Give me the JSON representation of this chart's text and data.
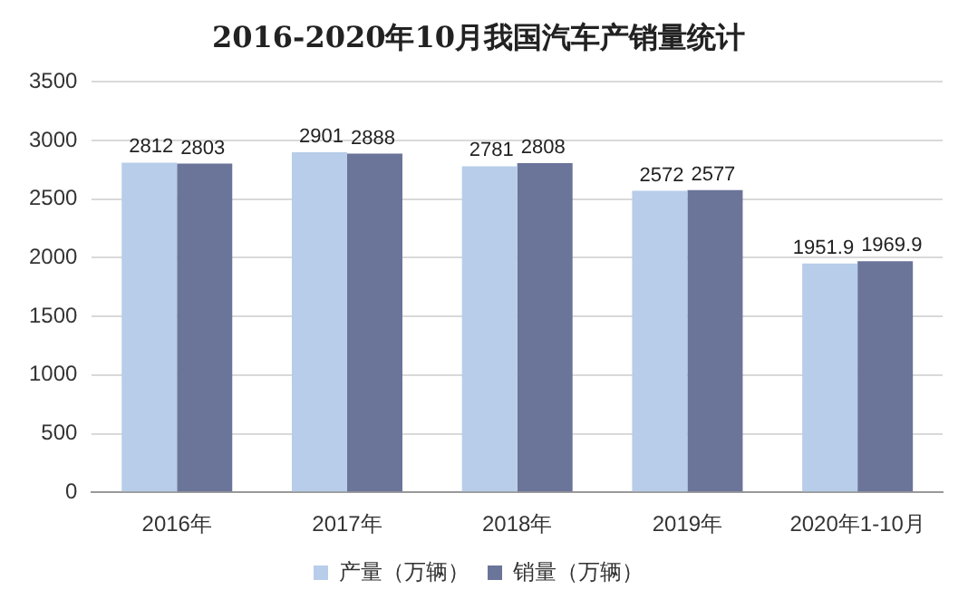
{
  "chart_data": {
    "type": "bar",
    "title": "2016-2020年10月我国汽车产销量统计",
    "categories": [
      "2016年",
      "2017年",
      "2018年",
      "2019年",
      "2020年1-10月"
    ],
    "series": [
      {
        "name": "产量（万辆）",
        "color": "#b7cde9",
        "values": [
          2812,
          2901,
          2781,
          2572,
          1951.9
        ]
      },
      {
        "name": "销量（万辆）",
        "color": "#6b7499",
        "values": [
          2803,
          2888,
          2808,
          2577,
          1969.9
        ]
      }
    ],
    "ylim": [
      0,
      3500
    ],
    "yticks": [
      0,
      500,
      1000,
      1500,
      2000,
      2500,
      3000,
      3500
    ],
    "grid": "y",
    "legend": "bottom",
    "data_labels": true
  }
}
